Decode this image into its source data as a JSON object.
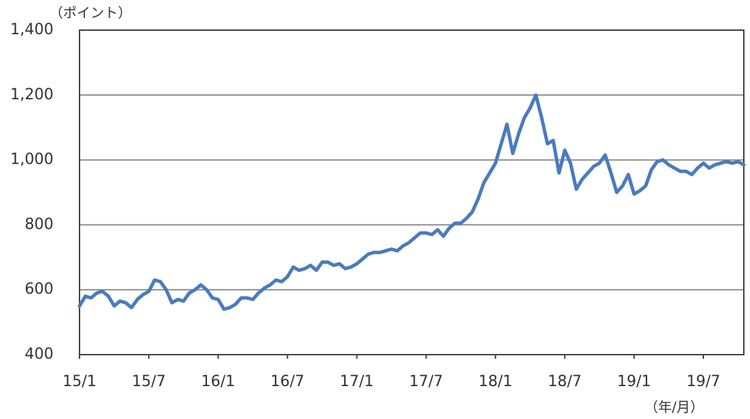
{
  "chart_data": {
    "type": "line",
    "y_unit_label": "（ポイント）",
    "x_unit_label": "（年/月）",
    "categories": [
      "15/1",
      null,
      null,
      null,
      null,
      null,
      null,
      null,
      null,
      null,
      null,
      null,
      "15/7",
      null,
      null,
      null,
      null,
      null,
      null,
      null,
      null,
      null,
      null,
      null,
      "16/1",
      null,
      null,
      null,
      null,
      null,
      null,
      null,
      null,
      null,
      null,
      null,
      "16/7",
      null,
      null,
      null,
      null,
      null,
      null,
      null,
      null,
      null,
      null,
      null,
      "17/1",
      null,
      null,
      null,
      null,
      null,
      null,
      null,
      null,
      null,
      null,
      null,
      "17/7",
      null,
      null,
      null,
      null,
      null,
      null,
      null,
      null,
      null,
      null,
      null,
      "18/1",
      null,
      null,
      null,
      null,
      null,
      null,
      null,
      null,
      null,
      null,
      null,
      "18/7",
      null,
      null,
      null,
      null,
      null,
      null,
      null,
      null,
      null,
      null,
      null,
      "19/1",
      null,
      null,
      null,
      null,
      null,
      null,
      null,
      null,
      null,
      null,
      null,
      "19/7",
      null,
      null,
      null,
      null,
      null,
      null,
      null
    ],
    "values": [
      550,
      580,
      575,
      590,
      595,
      580,
      550,
      565,
      560,
      545,
      570,
      585,
      595,
      630,
      625,
      600,
      560,
      570,
      565,
      590,
      600,
      615,
      600,
      575,
      570,
      540,
      545,
      555,
      575,
      575,
      570,
      590,
      605,
      615,
      630,
      625,
      640,
      670,
      660,
      665,
      675,
      660,
      685,
      685,
      675,
      680,
      665,
      670,
      680,
      695,
      710,
      715,
      715,
      720,
      725,
      720,
      735,
      745,
      760,
      775,
      775,
      770,
      785,
      765,
      790,
      805,
      805,
      820,
      840,
      880,
      930,
      960,
      990,
      1050,
      1110,
      1020,
      1080,
      1130,
      1160,
      1200,
      1130,
      1050,
      1060,
      960,
      1030,
      990,
      910,
      940,
      960,
      980,
      990,
      1015,
      960,
      900,
      920,
      955,
      895,
      905,
      920,
      970,
      995,
      1000,
      985,
      975,
      965,
      965,
      955,
      975,
      990,
      975,
      985,
      990,
      995,
      990,
      995,
      985
    ],
    "color": "#4a7bbd",
    "ylim": [
      400,
      1400
    ],
    "yticks": [
      400,
      600,
      800,
      {
        "value": 1000,
        "label": "1,000"
      },
      {
        "value": 1200,
        "label": "1,200"
      },
      {
        "value": 1400,
        "label": "1,400"
      }
    ],
    "grid": true
  }
}
